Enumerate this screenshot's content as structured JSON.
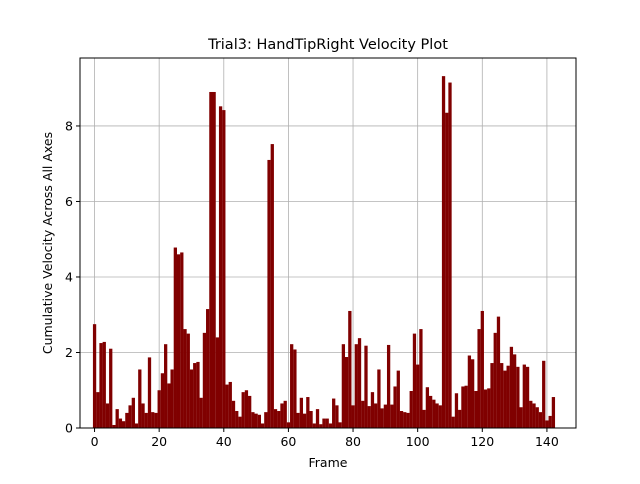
{
  "chart_data": {
    "type": "bar",
    "title": "Trial3: HandTipRight Velocity Plot",
    "xlabel": "Frame",
    "ylabel": "Cumulative Velocity Across All Axes",
    "xlim": [
      -4.5,
      149
    ],
    "ylim": [
      0,
      9.8
    ],
    "xticks": [
      0,
      20,
      40,
      60,
      80,
      100,
      120,
      140
    ],
    "yticks": [
      0,
      2,
      4,
      6,
      8
    ],
    "grid": true,
    "bar_color": "#800000",
    "x": [
      0,
      1,
      2,
      3,
      4,
      5,
      6,
      7,
      8,
      9,
      10,
      11,
      12,
      13,
      14,
      15,
      16,
      17,
      18,
      19,
      20,
      21,
      22,
      23,
      24,
      25,
      26,
      27,
      28,
      29,
      30,
      31,
      32,
      33,
      34,
      35,
      36,
      37,
      38,
      39,
      40,
      41,
      42,
      43,
      44,
      45,
      46,
      47,
      48,
      49,
      50,
      51,
      52,
      53,
      54,
      55,
      56,
      57,
      58,
      59,
      60,
      61,
      62,
      63,
      64,
      65,
      66,
      67,
      68,
      69,
      70,
      71,
      72,
      73,
      74,
      75,
      76,
      77,
      78,
      79,
      80,
      81,
      82,
      83,
      84,
      85,
      86,
      87,
      88,
      89,
      90,
      91,
      92,
      93,
      94,
      95,
      96,
      97,
      98,
      99,
      100,
      101,
      102,
      103,
      104,
      105,
      106,
      107,
      108,
      109,
      110,
      111,
      112,
      113,
      114,
      115,
      116,
      117,
      118,
      119,
      120,
      121,
      122,
      123,
      124,
      125,
      126,
      127,
      128,
      129,
      130,
      131,
      132,
      133,
      134,
      135,
      136,
      137,
      138,
      139,
      140,
      141,
      142
    ],
    "values": [
      2.75,
      0.95,
      2.25,
      2.28,
      0.65,
      2.1,
      0.08,
      0.5,
      0.25,
      0.18,
      0.4,
      0.6,
      0.8,
      0.12,
      1.55,
      0.65,
      0.4,
      1.87,
      0.42,
      0.4,
      1.0,
      1.45,
      2.22,
      1.18,
      1.55,
      4.78,
      4.6,
      4.65,
      2.62,
      2.5,
      1.55,
      1.72,
      1.75,
      0.8,
      2.52,
      3.15,
      8.9,
      8.9,
      2.4,
      8.52,
      8.42,
      1.15,
      1.22,
      0.72,
      0.45,
      0.3,
      0.95,
      1.0,
      0.85,
      0.42,
      0.38,
      0.35,
      0.12,
      0.42,
      7.1,
      7.52,
      0.5,
      0.45,
      0.65,
      0.72,
      0.15,
      2.22,
      2.08,
      0.4,
      0.8,
      0.38,
      0.82,
      0.45,
      0.12,
      0.5,
      0.1,
      0.25,
      0.25,
      0.12,
      0.78,
      0.6,
      0.15,
      2.22,
      1.88,
      3.1,
      0.6,
      2.22,
      2.38,
      0.72,
      2.18,
      0.58,
      0.95,
      0.65,
      1.55,
      0.52,
      0.62,
      2.2,
      0.62,
      1.1,
      1.52,
      0.45,
      0.42,
      0.4,
      0.98,
      2.5,
      1.68,
      2.62,
      0.48,
      1.08,
      0.85,
      0.75,
      0.65,
      0.6,
      9.32,
      8.35,
      9.15,
      0.3,
      0.92,
      0.48,
      1.1,
      1.12,
      1.92,
      1.82,
      0.98,
      2.62,
      3.1,
      1.02,
      1.05,
      1.72,
      2.52,
      2.95,
      1.72,
      1.52,
      1.65,
      2.15,
      1.95,
      1.62,
      0.55,
      1.68,
      1.62,
      0.72,
      0.65,
      0.55,
      0.42,
      1.78,
      0.2,
      0.32,
      0.82
    ]
  }
}
